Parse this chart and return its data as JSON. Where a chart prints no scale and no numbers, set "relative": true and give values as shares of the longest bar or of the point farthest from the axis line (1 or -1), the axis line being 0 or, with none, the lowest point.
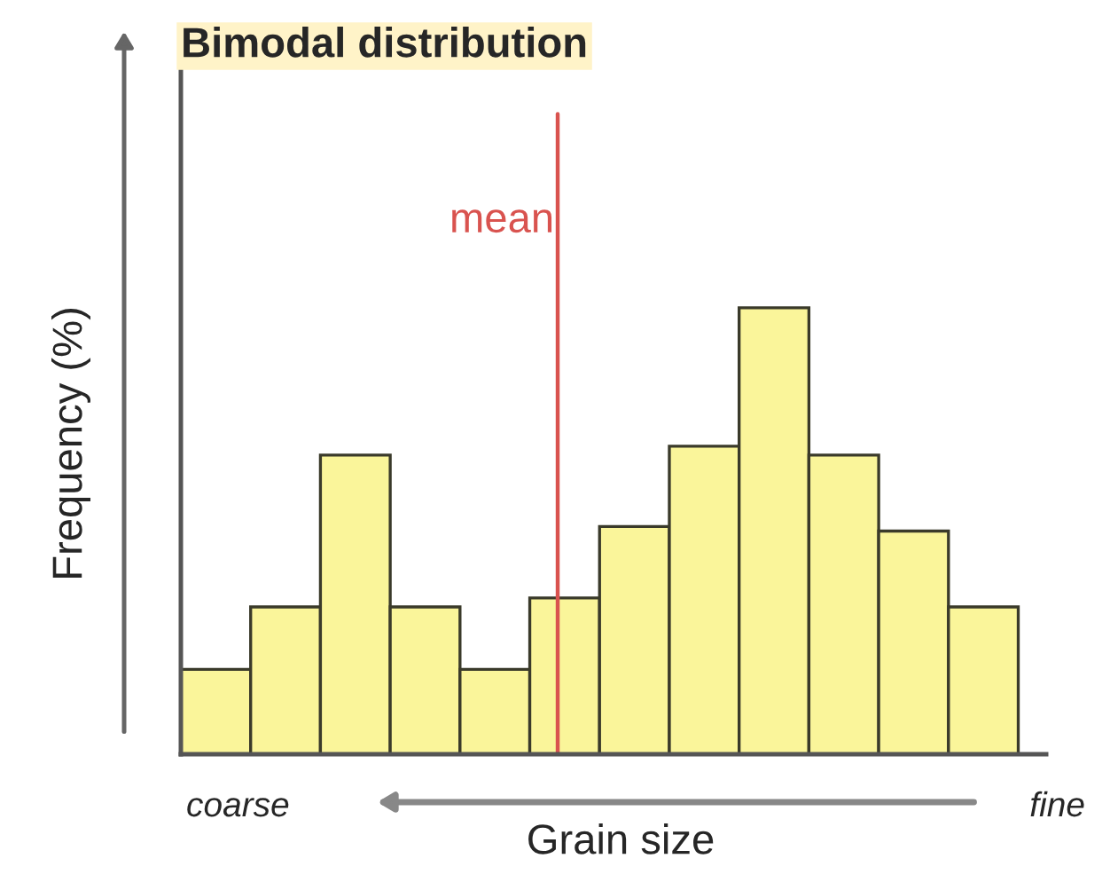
{
  "chart_data": {
    "type": "bar",
    "title": "Bimodal distribution",
    "xlabel": "Grain size",
    "ylabel": "Frequency (%)",
    "categories": [
      null,
      null,
      null,
      null,
      null,
      null,
      null,
      null,
      null,
      null,
      null,
      null
    ],
    "values": [
      0.19,
      0.33,
      0.67,
      0.33,
      0.19,
      0.35,
      0.51,
      0.69,
      1,
      0.67,
      0.5,
      0.33
    ],
    "color": "#faf59a",
    "relative": true,
    "annotations": [
      "mean",
      "coarse",
      "fine"
    ]
  }
}
